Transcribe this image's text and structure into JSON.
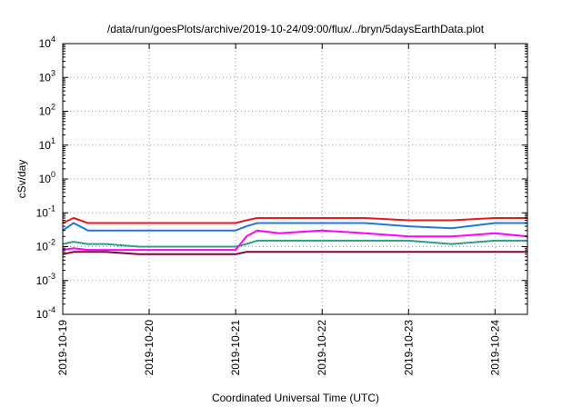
{
  "chart_data": {
    "type": "line",
    "title": "/data/run/goesPlots/archive/2019-10-24/09:00/flux/../bryn/5daysEarthData.plot",
    "xlabel": "Coordinated Universal Time (UTC)",
    "ylabel": "cSv/day",
    "yscale": "log",
    "ylim": [
      0.0001,
      10000
    ],
    "xlim": [
      "2019-10-19T00:00",
      "2019-10-24T09:00"
    ],
    "grid": true,
    "legend": "none",
    "y_ticks": [
      {
        "base": "10",
        "exp": "-4"
      },
      {
        "base": "10",
        "exp": "-3"
      },
      {
        "base": "10",
        "exp": "-2"
      },
      {
        "base": "10",
        "exp": "-1"
      },
      {
        "base": "10",
        "exp": "0"
      },
      {
        "base": "10",
        "exp": "1"
      },
      {
        "base": "10",
        "exp": "2"
      },
      {
        "base": "10",
        "exp": "3"
      },
      {
        "base": "10",
        "exp": "4"
      }
    ],
    "x_ticks": [
      "2019-10-19",
      "2019-10-20",
      "2019-10-21",
      "2019-10-22",
      "2019-10-23",
      "2019-10-24"
    ],
    "series": [
      {
        "color": "#e41a1c",
        "x": [
          "2019-10-19T00:00",
          "2019-10-19T03:00",
          "2019-10-19T07:00",
          "2019-10-19T12:00",
          "2019-10-19T21:00",
          "2019-10-20T03:00",
          "2019-10-20T12:00",
          "2019-10-20T18:00",
          "2019-10-21T00:00",
          "2019-10-21T03:00",
          "2019-10-21T06:00",
          "2019-10-21T12:00",
          "2019-10-22T00:00",
          "2019-10-22T12:00",
          "2019-10-23T00:00",
          "2019-10-23T12:00",
          "2019-10-24T00:00",
          "2019-10-24T09:00"
        ],
        "y": [
          0.05,
          0.07,
          0.05,
          0.05,
          0.05,
          0.05,
          0.05,
          0.05,
          0.05,
          0.06,
          0.07,
          0.07,
          0.07,
          0.07,
          0.06,
          0.06,
          0.07,
          0.07
        ]
      },
      {
        "color": "#1f77e6",
        "x": [
          "2019-10-19T00:00",
          "2019-10-19T03:00",
          "2019-10-19T07:00",
          "2019-10-19T12:00",
          "2019-10-19T21:00",
          "2019-10-20T03:00",
          "2019-10-20T12:00",
          "2019-10-20T18:00",
          "2019-10-21T00:00",
          "2019-10-21T03:00",
          "2019-10-21T06:00",
          "2019-10-21T12:00",
          "2019-10-22T00:00",
          "2019-10-22T12:00",
          "2019-10-23T00:00",
          "2019-10-23T12:00",
          "2019-10-24T00:00",
          "2019-10-24T09:00"
        ],
        "y": [
          0.03,
          0.05,
          0.03,
          0.03,
          0.03,
          0.03,
          0.03,
          0.03,
          0.03,
          0.04,
          0.05,
          0.05,
          0.05,
          0.05,
          0.04,
          0.035,
          0.05,
          0.05
        ]
      },
      {
        "color": "#2ca089",
        "x": [
          "2019-10-19T00:00",
          "2019-10-19T03:00",
          "2019-10-19T07:00",
          "2019-10-19T12:00",
          "2019-10-19T21:00",
          "2019-10-20T03:00",
          "2019-10-20T12:00",
          "2019-10-20T18:00",
          "2019-10-21T00:00",
          "2019-10-21T03:00",
          "2019-10-21T06:00",
          "2019-10-21T12:00",
          "2019-10-22T00:00",
          "2019-10-22T12:00",
          "2019-10-23T00:00",
          "2019-10-23T12:00",
          "2019-10-24T00:00",
          "2019-10-24T09:00"
        ],
        "y": [
          0.012,
          0.014,
          0.012,
          0.012,
          0.01,
          0.01,
          0.01,
          0.01,
          0.01,
          0.012,
          0.015,
          0.015,
          0.015,
          0.015,
          0.015,
          0.012,
          0.015,
          0.015
        ]
      },
      {
        "color": "#800040",
        "x": [
          "2019-10-19T00:00",
          "2019-10-19T03:00",
          "2019-10-19T07:00",
          "2019-10-19T12:00",
          "2019-10-19T21:00",
          "2019-10-20T03:00",
          "2019-10-20T12:00",
          "2019-10-20T18:00",
          "2019-10-21T00:00",
          "2019-10-21T03:00",
          "2019-10-21T06:00",
          "2019-10-21T12:00",
          "2019-10-22T00:00",
          "2019-10-22T12:00",
          "2019-10-23T00:00",
          "2019-10-23T12:00",
          "2019-10-24T00:00",
          "2019-10-24T09:00"
        ],
        "y": [
          0.006,
          0.007,
          0.007,
          0.007,
          0.006,
          0.006,
          0.006,
          0.006,
          0.006,
          0.007,
          0.007,
          0.007,
          0.007,
          0.007,
          0.007,
          0.007,
          0.007,
          0.007
        ]
      },
      {
        "color": "#ff00ff",
        "x": [
          "2019-10-19T00:00",
          "2019-10-19T03:00",
          "2019-10-19T07:00",
          "2019-10-19T12:00",
          "2019-10-19T21:00",
          "2019-10-20T03:00",
          "2019-10-20T12:00",
          "2019-10-20T18:00",
          "2019-10-21T00:00",
          "2019-10-21T03:00",
          "2019-10-21T06:00",
          "2019-10-21T12:00",
          "2019-10-22T00:00",
          "2019-10-22T12:00",
          "2019-10-23T00:00",
          "2019-10-23T12:00",
          "2019-10-24T00:00",
          "2019-10-24T09:00"
        ],
        "y": [
          0.008,
          0.009,
          0.008,
          0.008,
          0.008,
          0.008,
          0.008,
          0.008,
          0.008,
          0.02,
          0.03,
          0.025,
          0.03,
          0.025,
          0.02,
          0.02,
          0.025,
          0.02
        ]
      }
    ]
  }
}
